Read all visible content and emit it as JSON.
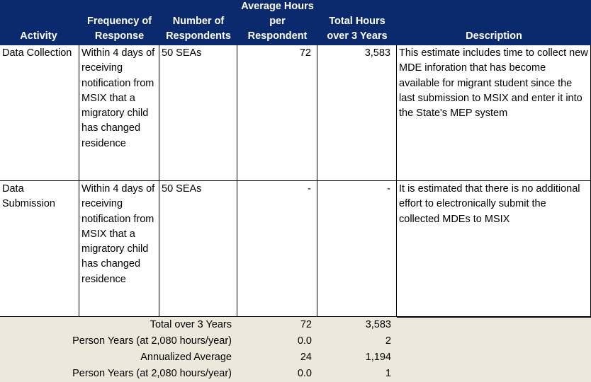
{
  "table": {
    "columns": [
      "Activity",
      "Frequency of Response",
      "Number of Respondents",
      "Average Hours per Respondent",
      "Total Hours over 3 Years",
      "Description"
    ],
    "rows": [
      [
        "Data Collection",
        "Within 4 days of receiving notification from MSIX that a migratory child has changed residence",
        "50 SEAs",
        "72",
        "3,583",
        "This estimate includes time to collect new MDE inforation that has become available for migrant student since the last submission to MSIX and enter it into the State's MEP system"
      ],
      [
        "Data Submission",
        "Within 4 days of receiving notification from MSIX that a migratory child has changed residence",
        "50 SEAs",
        "-",
        "-",
        "It is estimated that there is no additional effort to electronically submit the collected MDEs to MSIX"
      ]
    ],
    "summary": [
      [
        "Total over 3 Years",
        "72",
        "3,583"
      ],
      [
        "Person Years (at 2,080 hours/year)",
        "0.0",
        "2"
      ],
      [
        "Annualized Average",
        "24",
        "1,194"
      ],
      [
        "Person Years (at 2,080 hours/year)",
        "0.0",
        "1"
      ]
    ]
  }
}
